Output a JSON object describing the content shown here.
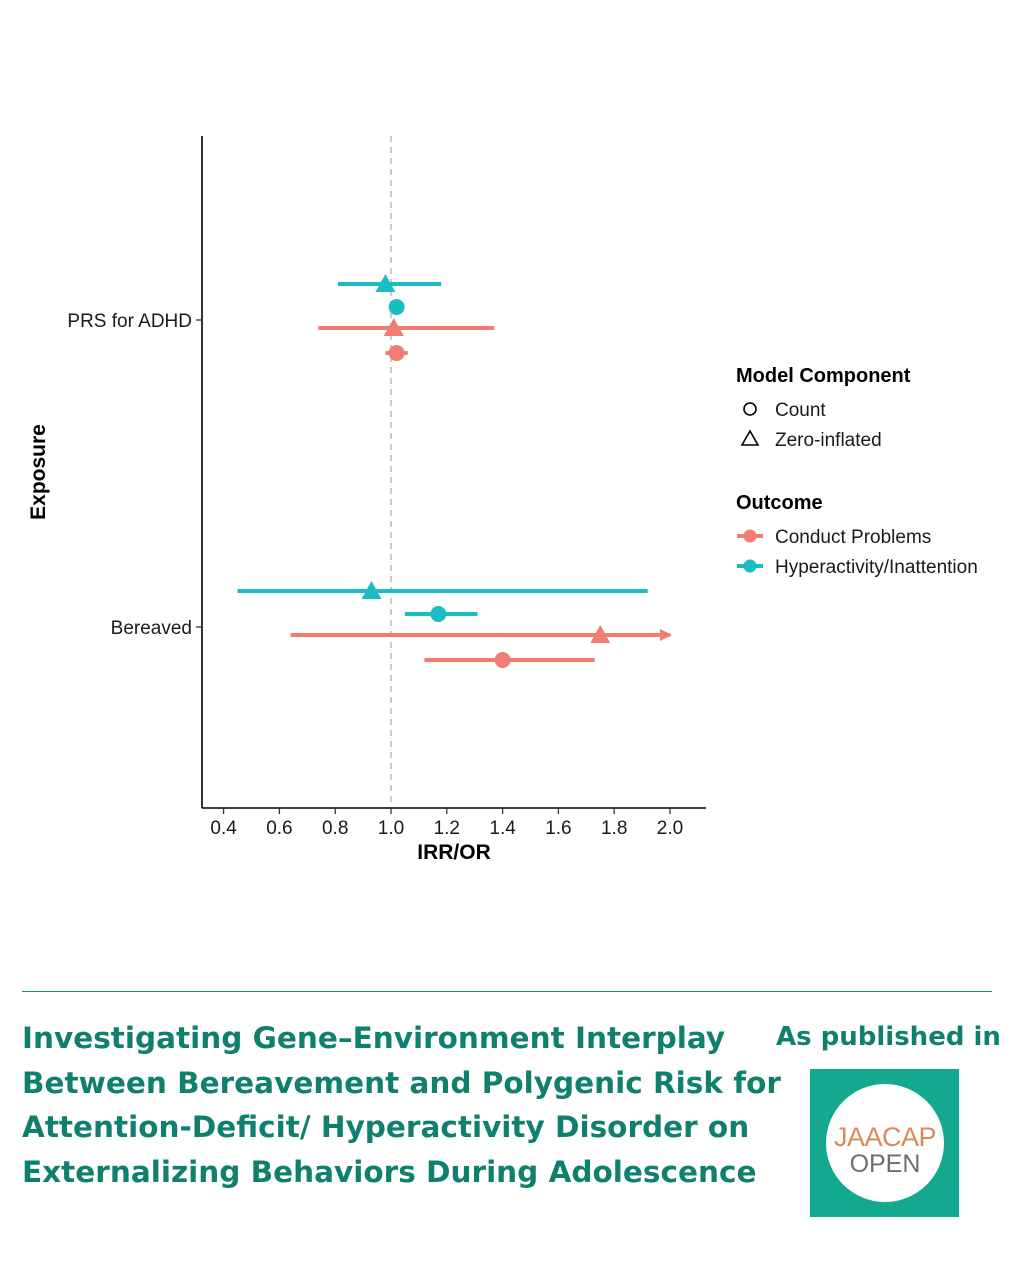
{
  "chart_data": {
    "type": "forest",
    "xlabel": "IRR/OR",
    "ylabel": "Exposure",
    "xlim": [
      0.37,
      2.13
    ],
    "x_ticks": [
      0.4,
      0.6,
      0.8,
      1.0,
      1.2,
      1.4,
      1.6,
      1.8,
      2.0
    ],
    "x_tick_labels": [
      "0.4",
      "0.6",
      "0.8",
      "1.0",
      "1.2",
      "1.4",
      "1.6",
      "1.8",
      "2.0"
    ],
    "reference_line": 1.0,
    "categories": [
      "PRS for ADHD",
      "Bereaved"
    ],
    "legend": {
      "component_title": "Model Component",
      "components": [
        {
          "label": "Count",
          "shape": "circle"
        },
        {
          "label": "Zero-inflated",
          "shape": "triangle"
        }
      ],
      "outcome_title": "Outcome",
      "outcomes": [
        {
          "label": "Conduct Problems",
          "color": "#f07c72"
        },
        {
          "label": "Hyperactivity/Inattention",
          "color": "#1bbcc4"
        }
      ]
    },
    "points": [
      {
        "exposure": "PRS for ADHD",
        "outcome": "Hyperactivity/Inattention",
        "component": "Zero-inflated",
        "estimate": 0.98,
        "lower": 0.81,
        "upper": 1.18
      },
      {
        "exposure": "PRS for ADHD",
        "outcome": "Hyperactivity/Inattention",
        "component": "Count",
        "estimate": 1.02,
        "lower": 1.01,
        "upper": 1.03
      },
      {
        "exposure": "PRS for ADHD",
        "outcome": "Conduct Problems",
        "component": "Zero-inflated",
        "estimate": 1.01,
        "lower": 0.74,
        "upper": 1.37
      },
      {
        "exposure": "PRS for ADHD",
        "outcome": "Conduct Problems",
        "component": "Count",
        "estimate": 1.02,
        "lower": 0.98,
        "upper": 1.06
      },
      {
        "exposure": "Bereaved",
        "outcome": "Hyperactivity/Inattention",
        "component": "Zero-inflated",
        "estimate": 0.93,
        "lower": 0.45,
        "upper": 1.92
      },
      {
        "exposure": "Bereaved",
        "outcome": "Hyperactivity/Inattention",
        "component": "Count",
        "estimate": 1.17,
        "lower": 1.05,
        "upper": 1.31
      },
      {
        "exposure": "Bereaved",
        "outcome": "Conduct Problems",
        "component": "Zero-inflated",
        "estimate": 1.75,
        "lower": 0.64,
        "upper": 2.0,
        "upper_truncated": true
      },
      {
        "exposure": "Bereaved",
        "outcome": "Conduct Problems",
        "component": "Count",
        "estimate": 1.4,
        "lower": 1.12,
        "upper": 1.73
      }
    ]
  },
  "footer": {
    "title_lines": [
      "Investigating Gene–Environment Interplay",
      "Between Bereavement and Polygenic Risk for",
      "Attention-Deficit/ Hyperactivity Disorder on",
      "Externalizing Behaviors During Adolescence"
    ],
    "published_label": "As published in",
    "logo_line1": "JAACAP",
    "logo_line2": "OPEN",
    "accent_color": "#0f7f6e",
    "logo_bg_color": "#13a98f"
  }
}
